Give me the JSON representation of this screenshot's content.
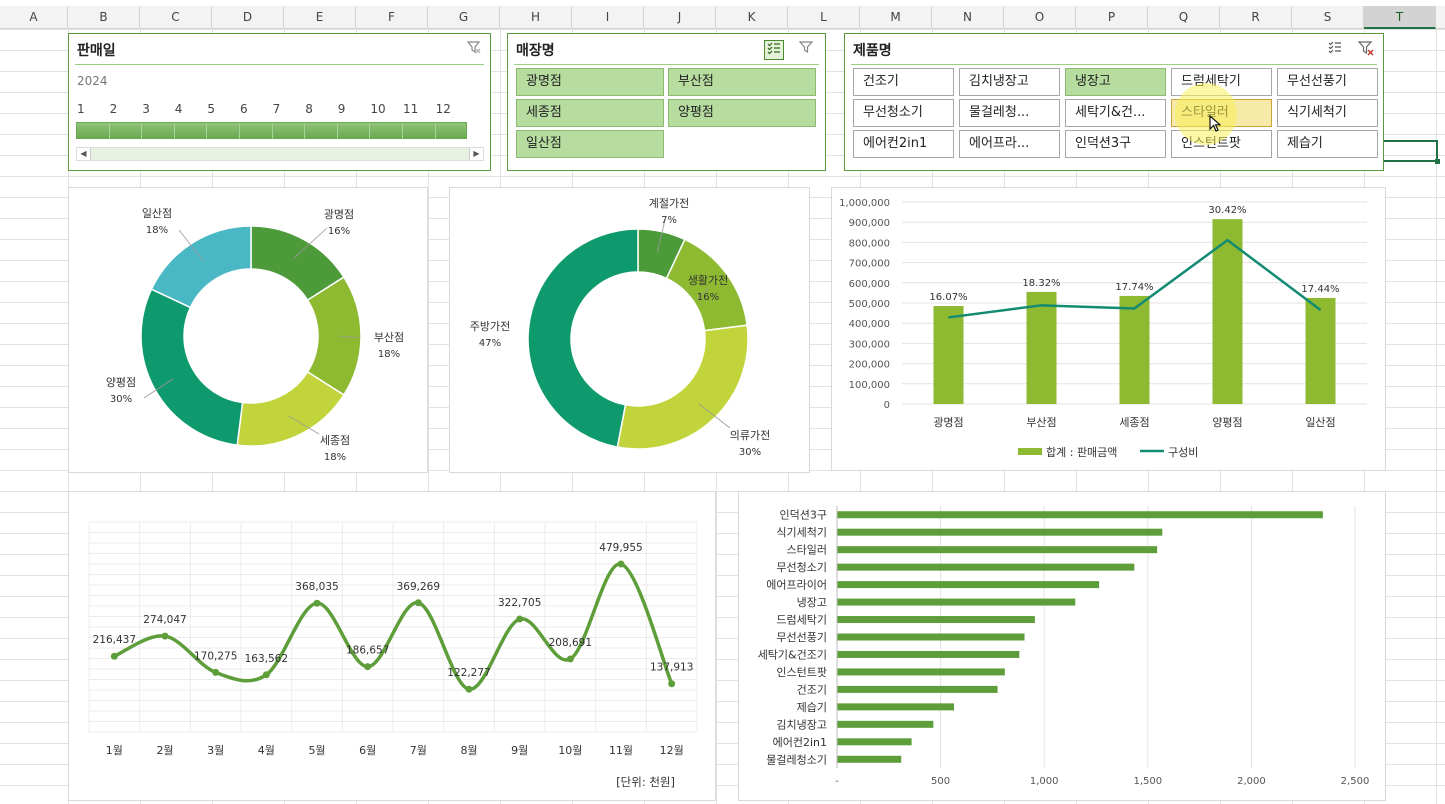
{
  "columns": [
    "A",
    "B",
    "C",
    "D",
    "E",
    "F",
    "G",
    "H",
    "I",
    "J",
    "K",
    "L",
    "M",
    "N",
    "O",
    "P",
    "Q",
    "R",
    "S",
    "T"
  ],
  "selected_column": "T",
  "slicer_date": {
    "title": "판매일",
    "year": "2024",
    "months": [
      "1",
      "2",
      "3",
      "4",
      "5",
      "6",
      "7",
      "8",
      "9",
      "10",
      "11",
      "12"
    ],
    "icon": "clear-filter-icon"
  },
  "slicer_store": {
    "title": "매장명",
    "items": [
      {
        "label": "광명점",
        "selected": true
      },
      {
        "label": "부산점",
        "selected": true
      },
      {
        "label": "세종점",
        "selected": true
      },
      {
        "label": "양평점",
        "selected": true
      },
      {
        "label": "일산점",
        "selected": true
      }
    ]
  },
  "slicer_product": {
    "title": "제품명",
    "items": [
      {
        "label": "건조기",
        "selected": false
      },
      {
        "label": "김치냉장고",
        "selected": false
      },
      {
        "label": "냉장고",
        "selected": true
      },
      {
        "label": "드럼세탁기",
        "selected": false
      },
      {
        "label": "무선선풍기",
        "selected": false
      },
      {
        "label": "무선청소기",
        "selected": false
      },
      {
        "label": "물걸레청...",
        "selected": false
      },
      {
        "label": "세탁기&건...",
        "selected": false
      },
      {
        "label": "스타일러",
        "selected": true,
        "hover": true
      },
      {
        "label": "식기세척기",
        "selected": false
      },
      {
        "label": "에어컨2in1",
        "selected": false
      },
      {
        "label": "에어프라...",
        "selected": false
      },
      {
        "label": "인덕션3구",
        "selected": false
      },
      {
        "label": "인스턴트팟",
        "selected": false
      },
      {
        "label": "제습기",
        "selected": false
      }
    ]
  },
  "colors": {
    "slicer_border": "#5a9a3a",
    "selected": "#b6dca0",
    "bar_green": "#8dba30",
    "line_teal": "#138a72",
    "trend_green": "#5e9e3a",
    "hbar_green": "#5e9e3a"
  },
  "chart_data": [
    {
      "type": "pie",
      "id": "store-donut",
      "slices": [
        {
          "label": "광명점",
          "value": 16,
          "display": "16%",
          "color": "#4c9a3a"
        },
        {
          "label": "부산점",
          "value": 18,
          "display": "18%",
          "color": "#8dba30"
        },
        {
          "label": "세종점",
          "value": 18,
          "display": "18%",
          "color": "#c2d43b"
        },
        {
          "label": "양평점",
          "value": 30,
          "display": "30%",
          "color": "#0f9a6e"
        },
        {
          "label": "일산점",
          "value": 18,
          "display": "18%",
          "color": "#4ab8c4"
        }
      ]
    },
    {
      "type": "pie",
      "id": "category-donut",
      "slices": [
        {
          "label": "계절가전",
          "value": 7,
          "display": "7%",
          "color": "#4c9a3a"
        },
        {
          "label": "생활가전",
          "value": 16,
          "display": "16%",
          "color": "#8dba30"
        },
        {
          "label": "의류가전",
          "value": 30,
          "display": "30%",
          "color": "#c2d43b"
        },
        {
          "label": "주방가전",
          "value": 47,
          "display": "47%",
          "color": "#0f9a6e"
        }
      ]
    },
    {
      "type": "bar",
      "id": "store-combo",
      "categories": [
        "광명점",
        "부산점",
        "세종점",
        "양평점",
        "일산점"
      ],
      "series": [
        {
          "name": "합계 : 판매금액",
          "kind": "bar",
          "values": [
            485000,
            555000,
            535000,
            915000,
            525000
          ]
        },
        {
          "name": "구성비",
          "kind": "line",
          "values": [
            16.07,
            18.32,
            17.74,
            30.42,
            17.44
          ],
          "labels": [
            "16.07%",
            "18.32%",
            "17.74%",
            "30.42%",
            "17.44%"
          ]
        }
      ],
      "ylim": [
        0,
        1000000
      ],
      "yticks": [
        "0",
        "100,000",
        "200,000",
        "300,000",
        "400,000",
        "500,000",
        "600,000",
        "700,000",
        "800,000",
        "900,000",
        "1,000,000"
      ]
    },
    {
      "type": "line",
      "id": "monthly-trend",
      "categories": [
        "1월",
        "2월",
        "3월",
        "4월",
        "5월",
        "6월",
        "7월",
        "8월",
        "9월",
        "10월",
        "11월",
        "12월"
      ],
      "values": [
        216437,
        274047,
        170275,
        163562,
        368035,
        186657,
        369269,
        122277,
        322705,
        208691,
        479955,
        137913
      ],
      "labels": [
        "216,437",
        "274,047",
        "170,275",
        "163,562",
        "368,035",
        "186,657",
        "369,269",
        "122,277",
        "322,705",
        "208,691",
        "479,955",
        "137,913"
      ],
      "ylim": [
        0,
        600000
      ],
      "unit_note": "[단위: 천원]"
    },
    {
      "type": "bar",
      "id": "product-hbar",
      "orientation": "horizontal",
      "categories": [
        "인덕션3구",
        "식기세척기",
        "스타일러",
        "무선청소기",
        "에어프라이어",
        "냉장고",
        "드럼세탁기",
        "무선선풍기",
        "세탁기&건조기",
        "인스턴트팟",
        "건조기",
        "제습기",
        "김치냉장고",
        "에어컨2in1",
        "물걸레청소기"
      ],
      "values": [
        2345,
        1570,
        1545,
        1435,
        1265,
        1150,
        955,
        905,
        880,
        810,
        775,
        565,
        465,
        360,
        310
      ],
      "xlim": [
        0,
        2500
      ],
      "xticks": [
        "-",
        "500",
        "1,000",
        "1,500",
        "2,000",
        "2,500"
      ]
    }
  ]
}
